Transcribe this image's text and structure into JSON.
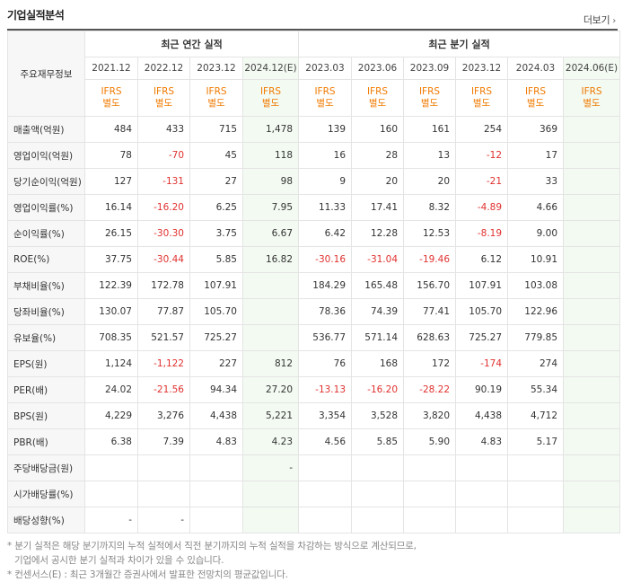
{
  "header": {
    "title": "기업실적분석",
    "more_label": "더보기"
  },
  "table": {
    "corner_label": "주요재무정보",
    "annual_group_label": "최근 연간 실적",
    "quarter_group_label": "최근 분기 실적",
    "periods": [
      "2021.12",
      "2022.12",
      "2023.12",
      "2024.12(E)",
      "2023.03",
      "2023.06",
      "2023.09",
      "2023.12",
      "2024.03",
      "2024.06(E)"
    ],
    "ifrs_label": [
      "IFRS",
      "IFRS",
      "IFRS",
      "IFRS",
      "IFRS",
      "IFRS",
      "IFRS",
      "IFRS",
      "IFRS",
      "IFRS"
    ],
    "ifrs_sub": [
      "별도",
      "별도",
      "별도",
      "별도",
      "별도",
      "별도",
      "별도",
      "별도",
      "별도",
      "별도"
    ],
    "rows": [
      {
        "label": "매출액(억원)",
        "values": [
          "484",
          "433",
          "715",
          "1,478",
          "139",
          "160",
          "161",
          "254",
          "369",
          ""
        ]
      },
      {
        "label": "영업이익(억원)",
        "values": [
          "78",
          "-70",
          "45",
          "118",
          "16",
          "28",
          "13",
          "-12",
          "17",
          ""
        ]
      },
      {
        "label": "당기순이익(억원)",
        "values": [
          "127",
          "-131",
          "27",
          "98",
          "9",
          "20",
          "20",
          "-21",
          "33",
          ""
        ]
      },
      {
        "label": "영업이익률(%)",
        "values": [
          "16.14",
          "-16.20",
          "6.25",
          "7.95",
          "11.33",
          "17.41",
          "8.32",
          "-4.89",
          "4.66",
          ""
        ]
      },
      {
        "label": "순이익률(%)",
        "values": [
          "26.15",
          "-30.30",
          "3.75",
          "6.67",
          "6.42",
          "12.28",
          "12.53",
          "-8.19",
          "9.00",
          ""
        ]
      },
      {
        "label": "ROE(%)",
        "values": [
          "37.75",
          "-30.44",
          "5.85",
          "16.82",
          "-30.16",
          "-31.04",
          "-19.46",
          "6.12",
          "10.91",
          ""
        ]
      },
      {
        "label": "부채비율(%)",
        "values": [
          "122.39",
          "172.78",
          "107.91",
          "",
          "184.29",
          "165.48",
          "156.70",
          "107.91",
          "103.08",
          ""
        ]
      },
      {
        "label": "당좌비율(%)",
        "values": [
          "130.07",
          "77.87",
          "105.70",
          "",
          "78.36",
          "74.39",
          "77.41",
          "105.70",
          "122.96",
          ""
        ]
      },
      {
        "label": "유보율(%)",
        "values": [
          "708.35",
          "521.57",
          "725.27",
          "",
          "536.77",
          "571.14",
          "628.63",
          "725.27",
          "779.85",
          ""
        ]
      },
      {
        "label": "EPS(원)",
        "values": [
          "1,124",
          "-1,122",
          "227",
          "812",
          "76",
          "168",
          "172",
          "-174",
          "274",
          ""
        ]
      },
      {
        "label": "PER(배)",
        "values": [
          "24.02",
          "-21.56",
          "94.34",
          "27.20",
          "-13.13",
          "-16.20",
          "-28.22",
          "90.19",
          "55.34",
          ""
        ]
      },
      {
        "label": "BPS(원)",
        "values": [
          "4,229",
          "3,276",
          "4,438",
          "5,221",
          "3,354",
          "3,528",
          "3,820",
          "4,438",
          "4,712",
          ""
        ]
      },
      {
        "label": "PBR(배)",
        "values": [
          "6.38",
          "7.39",
          "4.83",
          "4.23",
          "4.56",
          "5.85",
          "5.90",
          "4.83",
          "5.17",
          ""
        ]
      },
      {
        "label": "주당배당금(원)",
        "values": [
          "",
          "",
          "",
          "-",
          "",
          "",
          "",
          "",
          "",
          ""
        ]
      },
      {
        "label": "시가배당률(%)",
        "values": [
          "",
          "",
          "",
          "",
          "",
          "",
          "",
          "",
          "",
          ""
        ]
      },
      {
        "label": "배당성향(%)",
        "values": [
          "-",
          "-",
          "",
          "",
          "",
          "",
          "",
          "",
          "",
          ""
        ]
      }
    ]
  },
  "notes": [
    "* 분기 실적은 해당 분기까지의 누적 실적에서 직전 분기까지의 누적 실적을 차감하는 방식으로 계산되므로,",
    "  기업에서 공시한 분기 실적과 차이가 있을 수 있습니다.",
    "* 컨센서스(E) : 최근 3개월간 증권사에서 발표한 전망치의 평균값입니다."
  ],
  "colors": {
    "negative": "#e0312f",
    "ifrs": "#f07a00",
    "estimate_bg": "#f3faf2",
    "header_bg": "#f7f7f7"
  }
}
